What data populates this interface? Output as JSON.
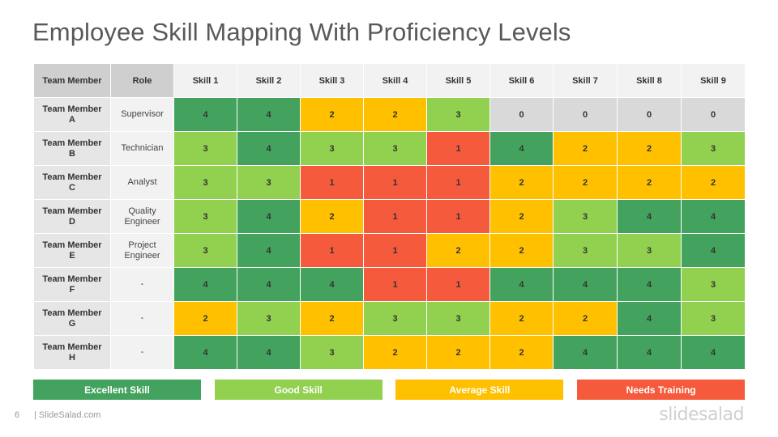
{
  "title": "Employee Skill Mapping With Proficiency Levels",
  "table": {
    "header_member": "Team Member",
    "header_role": "Role",
    "skills": [
      "Skill 1",
      "Skill 2",
      "Skill 3",
      "Skill 4",
      "Skill 5",
      "Skill 6",
      "Skill 7",
      "Skill 8",
      "Skill 9"
    ],
    "rows": [
      {
        "member": [
          "Team Member",
          "A"
        ],
        "role": [
          "Supervisor"
        ],
        "levels": [
          4,
          4,
          2,
          2,
          3,
          0,
          0,
          0,
          0
        ]
      },
      {
        "member": [
          "Team Member",
          "B"
        ],
        "role": [
          "Technician"
        ],
        "levels": [
          3,
          4,
          3,
          3,
          1,
          4,
          2,
          2,
          3
        ]
      },
      {
        "member": [
          "Team Member",
          "C"
        ],
        "role": [
          "Analyst"
        ],
        "levels": [
          3,
          3,
          1,
          1,
          1,
          2,
          2,
          2,
          2
        ]
      },
      {
        "member": [
          "Team Member",
          "D"
        ],
        "role": [
          "Quality",
          "Engineer"
        ],
        "levels": [
          3,
          4,
          2,
          1,
          1,
          2,
          3,
          4,
          4
        ]
      },
      {
        "member": [
          "Team Member",
          "E"
        ],
        "role": [
          "Project",
          "Engineer"
        ],
        "levels": [
          3,
          4,
          1,
          1,
          2,
          2,
          3,
          3,
          4
        ]
      },
      {
        "member": [
          "Team Member",
          "F"
        ],
        "role": [
          "-"
        ],
        "levels": [
          4,
          4,
          4,
          1,
          1,
          4,
          4,
          4,
          3
        ]
      },
      {
        "member": [
          "Team Member",
          "G"
        ],
        "role": [
          "-"
        ],
        "levels": [
          2,
          3,
          2,
          3,
          3,
          2,
          2,
          4,
          3
        ]
      },
      {
        "member": [
          "Team Member",
          "H"
        ],
        "role": [
          "-"
        ],
        "levels": [
          4,
          4,
          3,
          2,
          2,
          2,
          4,
          4,
          4
        ]
      }
    ]
  },
  "level_colors": {
    "4": "#43a35e",
    "3": "#92d050",
    "2": "#ffc000",
    "1": "#f55a3c",
    "0": "#d9d9d9"
  },
  "legend": [
    {
      "label": "Excellent Skill",
      "color": "#43a35e"
    },
    {
      "label": "Good Skill",
      "color": "#92d050"
    },
    {
      "label": "Average Skill",
      "color": "#ffc000"
    },
    {
      "label": "Needs Training",
      "color": "#f55a3c"
    }
  ],
  "footer": {
    "page_number": "6",
    "brand": "| SlideSalad.com",
    "logo": "slidesalad"
  }
}
